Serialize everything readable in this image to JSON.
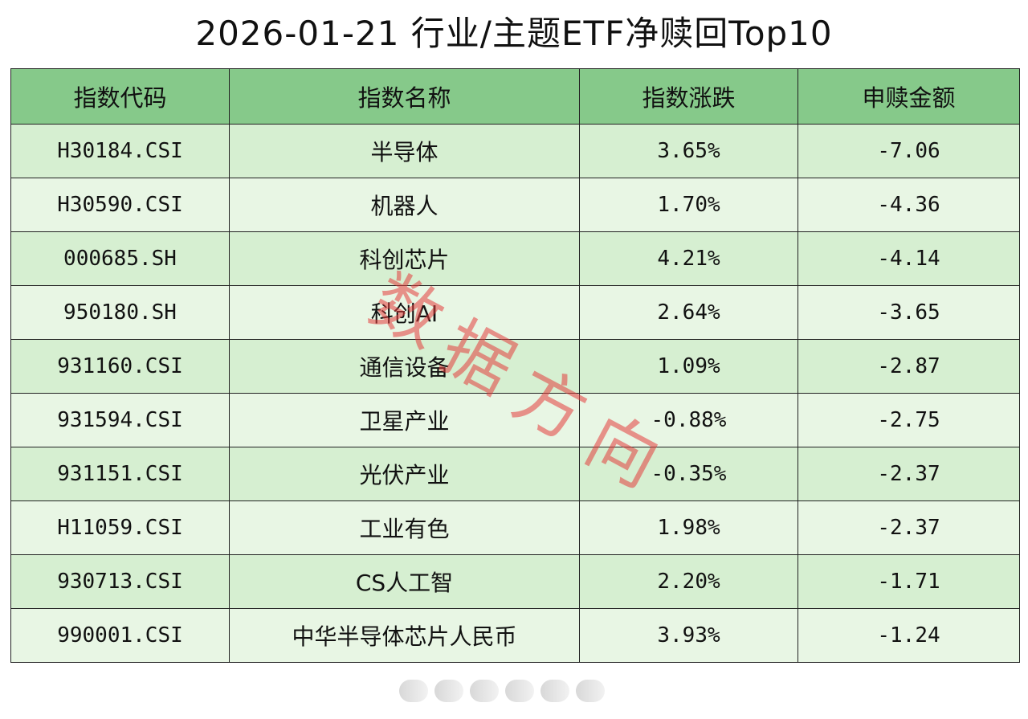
{
  "title": "2026-01-21 行业/主题ETF净赎回Top10",
  "table": {
    "headers": [
      "指数代码",
      "指数名称",
      "指数涨跌",
      "申赎金额"
    ],
    "rows": [
      [
        "H30184.CSI",
        "半导体",
        "3.65%",
        "-7.06"
      ],
      [
        "H30590.CSI",
        "机器人",
        "1.70%",
        "-4.36"
      ],
      [
        "000685.SH",
        "科创芯片",
        "4.21%",
        "-4.14"
      ],
      [
        "950180.SH",
        "科创AI",
        "2.64%",
        "-3.65"
      ],
      [
        "931160.CSI",
        "通信设备",
        "1.09%",
        "-2.87"
      ],
      [
        "931594.CSI",
        "卫星产业",
        "-0.88%",
        "-2.75"
      ],
      [
        "931151.CSI",
        "光伏产业",
        "-0.35%",
        "-2.37"
      ],
      [
        "H11059.CSI",
        "工业有色",
        "1.98%",
        "-2.37"
      ],
      [
        "930713.CSI",
        "CS人工智",
        "2.20%",
        "-1.71"
      ],
      [
        "990001.CSI",
        "中华半导体芯片人民币",
        "3.93%",
        "-1.24"
      ]
    ]
  },
  "watermark": [
    "数",
    "据",
    "方",
    "向"
  ],
  "colors": {
    "header_bg": "#86c98a",
    "row_odd_bg": "#d6efd1",
    "row_even_bg": "#e8f6e4",
    "watermark": "#e43c3c"
  }
}
